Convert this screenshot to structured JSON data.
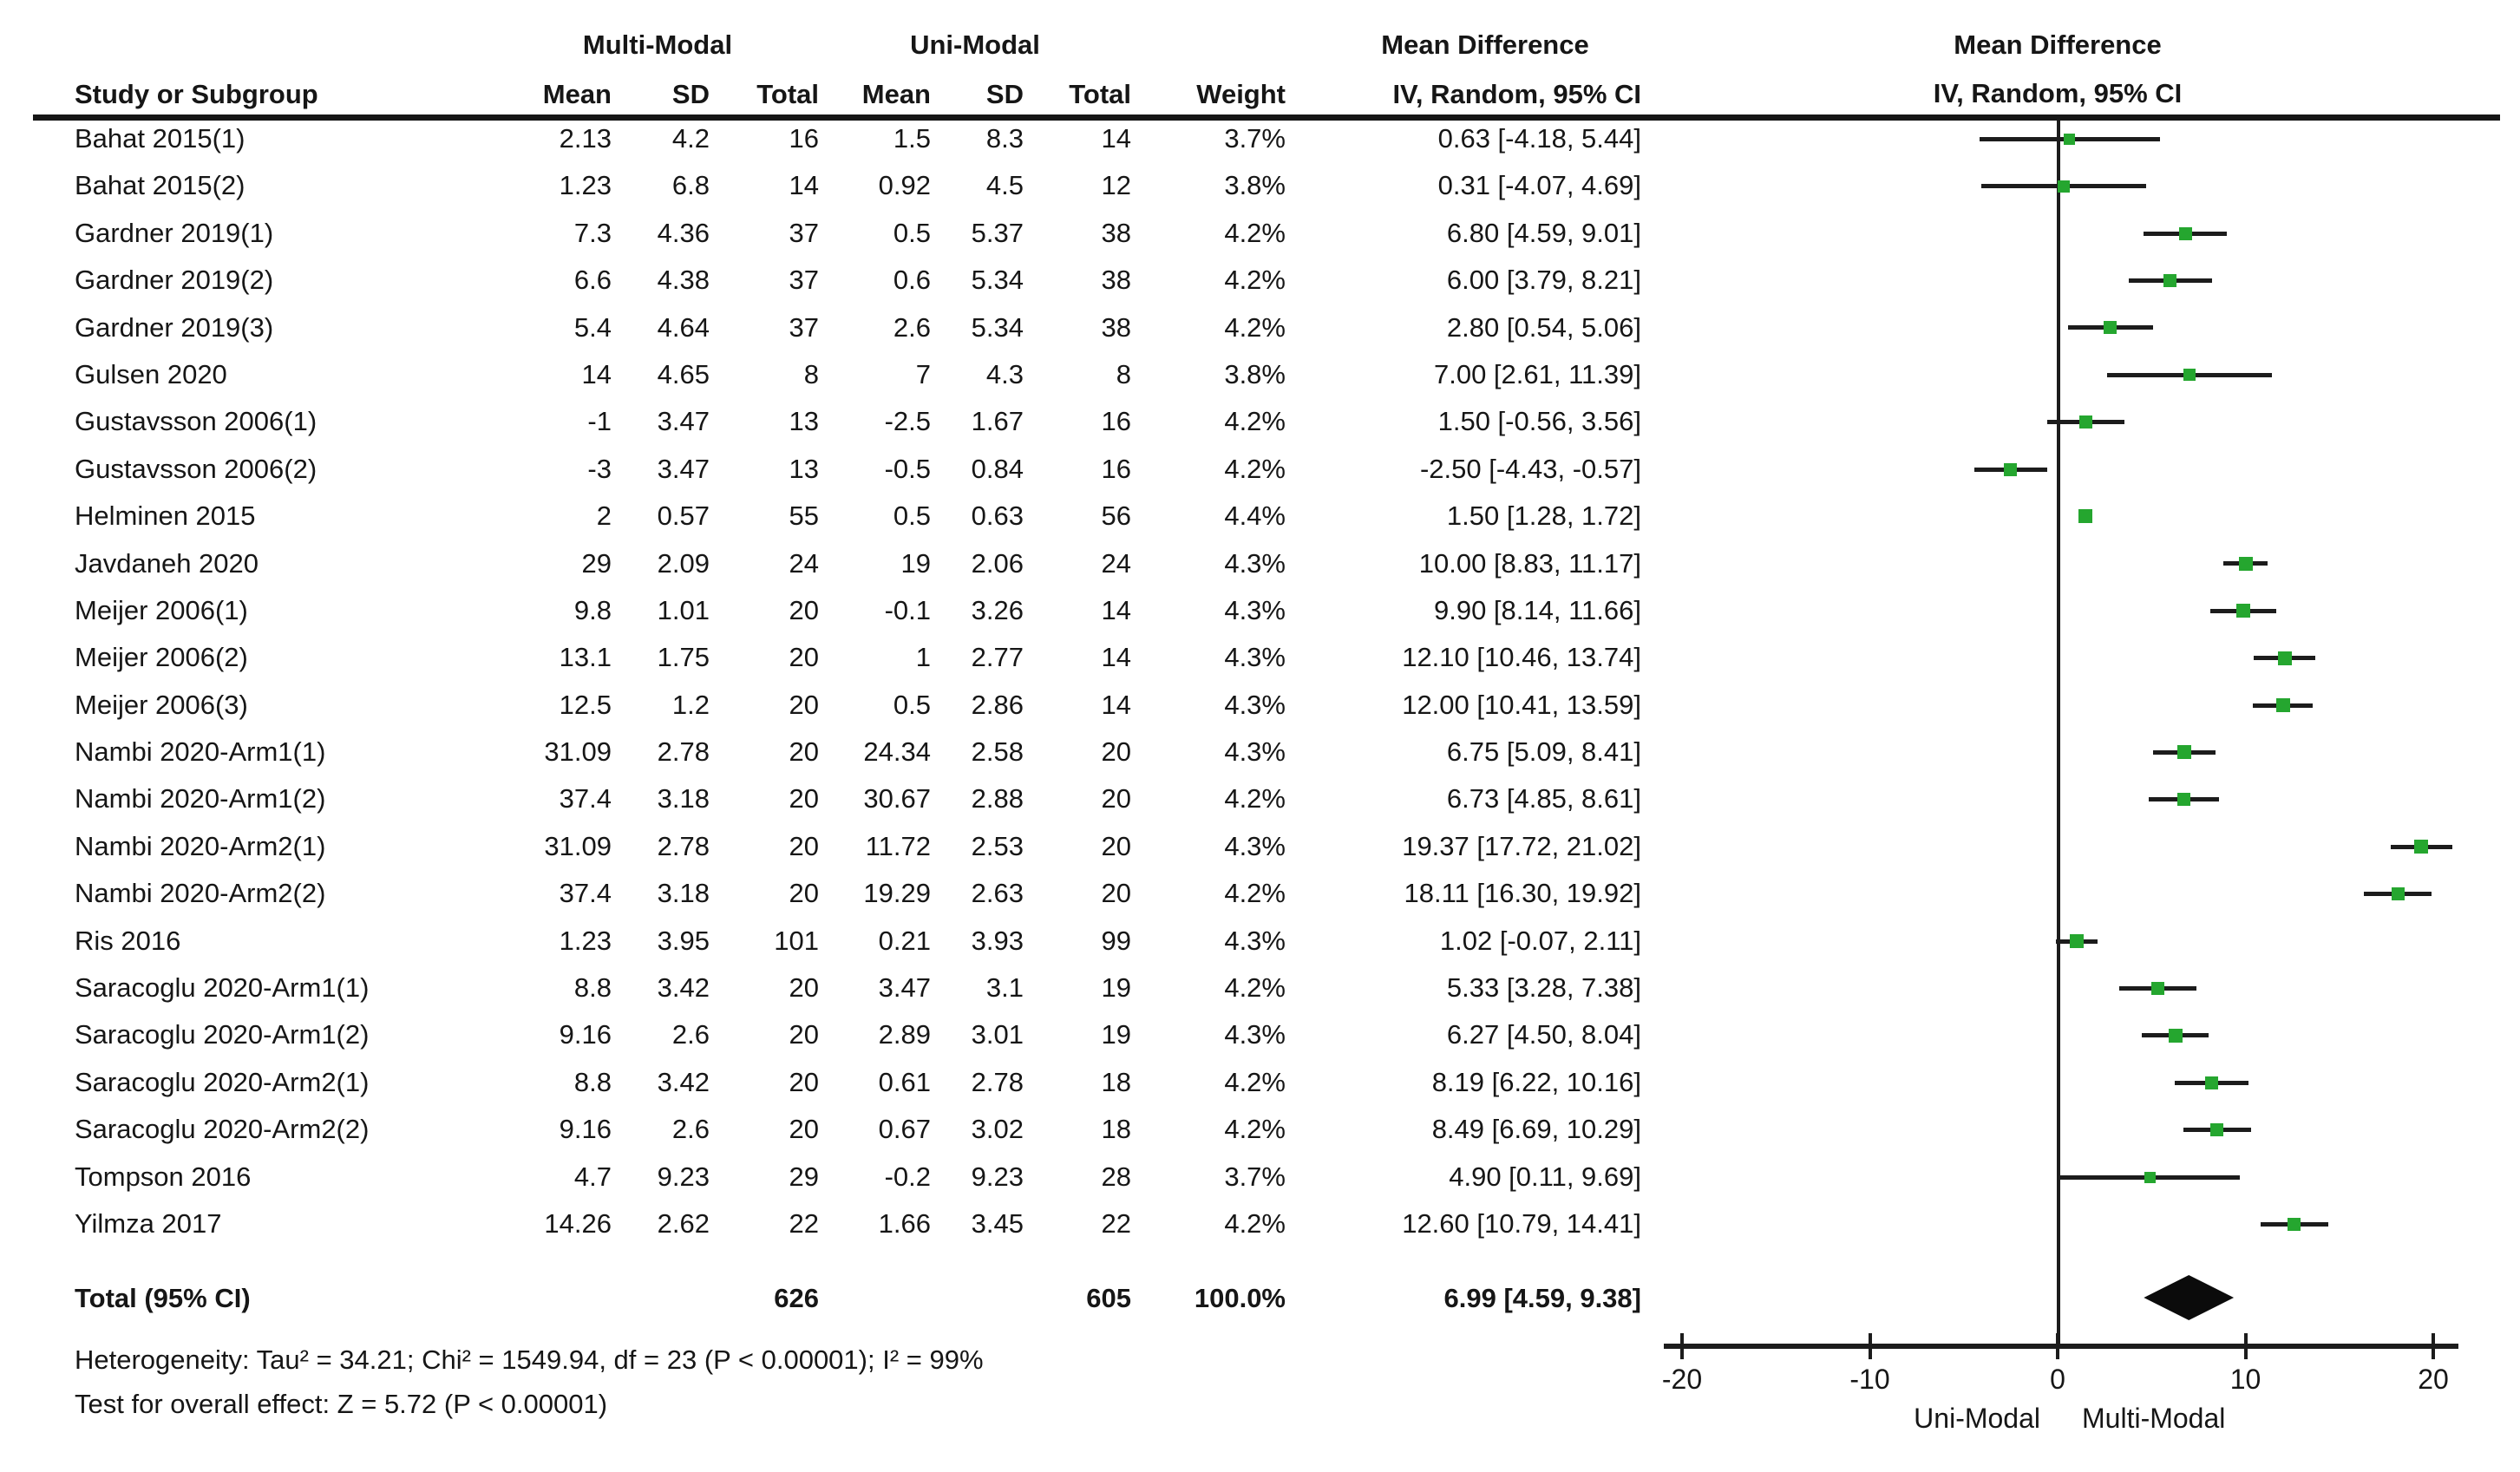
{
  "group_headers": {
    "experimental": "Multi-Modal",
    "control": "Uni-Modal",
    "md_col_line1": "Mean Difference",
    "md_col_line2": "IV, Random, 95% CI",
    "plot_line1": "Mean Difference",
    "plot_line2": "IV, Random, 95% CI"
  },
  "columns": {
    "study": "Study or Subgroup",
    "mean": "Mean",
    "sd": "SD",
    "total": "Total",
    "mean2": "Mean",
    "sd2": "SD",
    "total2": "Total",
    "weight": "Weight",
    "ci": "IV, Random, 95% CI"
  },
  "studies": [
    {
      "name": "Bahat 2015(1)",
      "mm_mean": "2.13",
      "mm_sd": "4.2",
      "mm_total": "16",
      "um_mean": "1.5",
      "um_sd": "8.3",
      "um_total": "14",
      "weight": "3.7%",
      "ci": "0.63 [-4.18, 5.44]"
    },
    {
      "name": "Bahat 2015(2)",
      "mm_mean": "1.23",
      "mm_sd": "6.8",
      "mm_total": "14",
      "um_mean": "0.92",
      "um_sd": "4.5",
      "um_total": "12",
      "weight": "3.8%",
      "ci": "0.31 [-4.07, 4.69]"
    },
    {
      "name": "Gardner 2019(1)",
      "mm_mean": "7.3",
      "mm_sd": "4.36",
      "mm_total": "37",
      "um_mean": "0.5",
      "um_sd": "5.37",
      "um_total": "38",
      "weight": "4.2%",
      "ci": "6.80 [4.59, 9.01]"
    },
    {
      "name": "Gardner 2019(2)",
      "mm_mean": "6.6",
      "mm_sd": "4.38",
      "mm_total": "37",
      "um_mean": "0.6",
      "um_sd": "5.34",
      "um_total": "38",
      "weight": "4.2%",
      "ci": "6.00 [3.79, 8.21]"
    },
    {
      "name": "Gardner 2019(3)",
      "mm_mean": "5.4",
      "mm_sd": "4.64",
      "mm_total": "37",
      "um_mean": "2.6",
      "um_sd": "5.34",
      "um_total": "38",
      "weight": "4.2%",
      "ci": "2.80 [0.54, 5.06]"
    },
    {
      "name": "Gulsen 2020",
      "mm_mean": "14",
      "mm_sd": "4.65",
      "mm_total": "8",
      "um_mean": "7",
      "um_sd": "4.3",
      "um_total": "8",
      "weight": "3.8%",
      "ci": "7.00 [2.61, 11.39]"
    },
    {
      "name": "Gustavsson 2006(1)",
      "mm_mean": "-1",
      "mm_sd": "3.47",
      "mm_total": "13",
      "um_mean": "-2.5",
      "um_sd": "1.67",
      "um_total": "16",
      "weight": "4.2%",
      "ci": "1.50 [-0.56, 3.56]"
    },
    {
      "name": "Gustavsson 2006(2)",
      "mm_mean": "-3",
      "mm_sd": "3.47",
      "mm_total": "13",
      "um_mean": "-0.5",
      "um_sd": "0.84",
      "um_total": "16",
      "weight": "4.2%",
      "ci": "-2.50 [-4.43, -0.57]"
    },
    {
      "name": "Helminen 2015",
      "mm_mean": "2",
      "mm_sd": "0.57",
      "mm_total": "55",
      "um_mean": "0.5",
      "um_sd": "0.63",
      "um_total": "56",
      "weight": "4.4%",
      "ci": "1.50 [1.28, 1.72]"
    },
    {
      "name": "Javdaneh 2020",
      "mm_mean": "29",
      "mm_sd": "2.09",
      "mm_total": "24",
      "um_mean": "19",
      "um_sd": "2.06",
      "um_total": "24",
      "weight": "4.3%",
      "ci": "10.00 [8.83, 11.17]"
    },
    {
      "name": "Meijer 2006(1)",
      "mm_mean": "9.8",
      "mm_sd": "1.01",
      "mm_total": "20",
      "um_mean": "-0.1",
      "um_sd": "3.26",
      "um_total": "14",
      "weight": "4.3%",
      "ci": "9.90 [8.14, 11.66]"
    },
    {
      "name": "Meijer 2006(2)",
      "mm_mean": "13.1",
      "mm_sd": "1.75",
      "mm_total": "20",
      "um_mean": "1",
      "um_sd": "2.77",
      "um_total": "14",
      "weight": "4.3%",
      "ci": "12.10 [10.46, 13.74]"
    },
    {
      "name": "Meijer 2006(3)",
      "mm_mean": "12.5",
      "mm_sd": "1.2",
      "mm_total": "20",
      "um_mean": "0.5",
      "um_sd": "2.86",
      "um_total": "14",
      "weight": "4.3%",
      "ci": "12.00 [10.41, 13.59]"
    },
    {
      "name": "Nambi 2020-Arm1(1)",
      "mm_mean": "31.09",
      "mm_sd": "2.78",
      "mm_total": "20",
      "um_mean": "24.34",
      "um_sd": "2.58",
      "um_total": "20",
      "weight": "4.3%",
      "ci": "6.75 [5.09, 8.41]"
    },
    {
      "name": "Nambi 2020-Arm1(2)",
      "mm_mean": "37.4",
      "mm_sd": "3.18",
      "mm_total": "20",
      "um_mean": "30.67",
      "um_sd": "2.88",
      "um_total": "20",
      "weight": "4.2%",
      "ci": "6.73 [4.85, 8.61]"
    },
    {
      "name": "Nambi 2020-Arm2(1)",
      "mm_mean": "31.09",
      "mm_sd": "2.78",
      "mm_total": "20",
      "um_mean": "11.72",
      "um_sd": "2.53",
      "um_total": "20",
      "weight": "4.3%",
      "ci": "19.37 [17.72, 21.02]"
    },
    {
      "name": "Nambi 2020-Arm2(2)",
      "mm_mean": "37.4",
      "mm_sd": "3.18",
      "mm_total": "20",
      "um_mean": "19.29",
      "um_sd": "2.63",
      "um_total": "20",
      "weight": "4.2%",
      "ci": "18.11 [16.30, 19.92]"
    },
    {
      "name": "Ris 2016",
      "mm_mean": "1.23",
      "mm_sd": "3.95",
      "mm_total": "101",
      "um_mean": "0.21",
      "um_sd": "3.93",
      "um_total": "99",
      "weight": "4.3%",
      "ci": "1.02 [-0.07, 2.11]"
    },
    {
      "name": "Saracoglu 2020-Arm1(1)",
      "mm_mean": "8.8",
      "mm_sd": "3.42",
      "mm_total": "20",
      "um_mean": "3.47",
      "um_sd": "3.1",
      "um_total": "19",
      "weight": "4.2%",
      "ci": "5.33 [3.28, 7.38]"
    },
    {
      "name": "Saracoglu 2020-Arm1(2)",
      "mm_mean": "9.16",
      "mm_sd": "2.6",
      "mm_total": "20",
      "um_mean": "2.89",
      "um_sd": "3.01",
      "um_total": "19",
      "weight": "4.3%",
      "ci": "6.27 [4.50, 8.04]"
    },
    {
      "name": "Saracoglu 2020-Arm2(1)",
      "mm_mean": "8.8",
      "mm_sd": "3.42",
      "mm_total": "20",
      "um_mean": "0.61",
      "um_sd": "2.78",
      "um_total": "18",
      "weight": "4.2%",
      "ci": "8.19 [6.22, 10.16]"
    },
    {
      "name": "Saracoglu 2020-Arm2(2)",
      "mm_mean": "9.16",
      "mm_sd": "2.6",
      "mm_total": "20",
      "um_mean": "0.67",
      "um_sd": "3.02",
      "um_total": "18",
      "weight": "4.2%",
      "ci": "8.49 [6.69, 10.29]"
    },
    {
      "name": "Tompson 2016",
      "mm_mean": "4.7",
      "mm_sd": "9.23",
      "mm_total": "29",
      "um_mean": "-0.2",
      "um_sd": "9.23",
      "um_total": "28",
      "weight": "3.7%",
      "ci": "4.90 [0.11, 9.69]"
    },
    {
      "name": "Yilmza 2017",
      "mm_mean": "14.26",
      "mm_sd": "2.62",
      "mm_total": "22",
      "um_mean": "1.66",
      "um_sd": "3.45",
      "um_total": "22",
      "weight": "4.2%",
      "ci": "12.60 [10.79, 14.41]"
    }
  ],
  "total_row": {
    "label": "Total (95% CI)",
    "mm_total": "626",
    "um_total": "605",
    "weight": "100.0%",
    "ci": "6.99 [4.59, 9.38]"
  },
  "footnotes": {
    "heterogeneity": "Heterogeneity: Tau² = 34.21; Chi² = 1549.94, df = 23 (P < 0.00001); I² = 99%",
    "overall_effect": "Test for overall effect: Z = 5.72 (P < 0.00001)"
  },
  "axis": {
    "min": -20,
    "max": 20,
    "ticks": [
      "-20",
      "-10",
      "0",
      "10",
      "20"
    ],
    "left_label": "Uni-Modal",
    "right_label": "Multi-Modal"
  },
  "colors": {
    "marker_green": "#25a62f",
    "line_black": "#1c1c1c",
    "diamond_black": "#0b0b0b"
  },
  "chart_data": {
    "type": "scatter",
    "subtype": "forest-plot",
    "title": "Mean Difference",
    "xlabel": "IV, Random, 95% CI",
    "categories": [
      "Bahat 2015(1)",
      "Bahat 2015(2)",
      "Gardner 2019(1)",
      "Gardner 2019(2)",
      "Gardner 2019(3)",
      "Gulsen 2020",
      "Gustavsson 2006(1)",
      "Gustavsson 2006(2)",
      "Helminen 2015",
      "Javdaneh 2020",
      "Meijer 2006(1)",
      "Meijer 2006(2)",
      "Meijer 2006(3)",
      "Nambi 2020-Arm1(1)",
      "Nambi 2020-Arm1(2)",
      "Nambi 2020-Arm2(1)",
      "Nambi 2020-Arm2(2)",
      "Ris 2016",
      "Saracoglu 2020-Arm1(1)",
      "Saracoglu 2020-Arm1(2)",
      "Saracoglu 2020-Arm2(1)",
      "Saracoglu 2020-Arm2(2)",
      "Tompson 2016",
      "Yilmza 2017"
    ],
    "series": [
      {
        "name": "Mean Difference IV, Random, 95% CI",
        "estimates": [
          0.63,
          0.31,
          6.8,
          6.0,
          2.8,
          7.0,
          1.5,
          -2.5,
          1.5,
          10.0,
          9.9,
          12.1,
          12.0,
          6.75,
          6.73,
          19.37,
          18.11,
          1.02,
          5.33,
          6.27,
          8.19,
          8.49,
          4.9,
          12.6
        ],
        "ci_low": [
          -4.18,
          -4.07,
          4.59,
          3.79,
          0.54,
          2.61,
          -0.56,
          -4.43,
          1.28,
          8.83,
          8.14,
          10.46,
          10.41,
          5.09,
          4.85,
          17.72,
          16.3,
          -0.07,
          3.28,
          4.5,
          6.22,
          6.69,
          0.11,
          10.79
        ],
        "ci_high": [
          5.44,
          4.69,
          9.01,
          8.21,
          5.06,
          11.39,
          3.56,
          -0.57,
          1.72,
          11.17,
          11.66,
          13.74,
          13.59,
          8.41,
          8.61,
          21.02,
          19.92,
          2.11,
          7.38,
          8.04,
          10.16,
          10.29,
          9.69,
          14.41
        ],
        "weights_pct": [
          3.7,
          3.8,
          4.2,
          4.2,
          4.2,
          3.8,
          4.2,
          4.2,
          4.4,
          4.3,
          4.3,
          4.3,
          4.3,
          4.3,
          4.2,
          4.3,
          4.2,
          4.3,
          4.2,
          4.3,
          4.2,
          4.2,
          3.7,
          4.2
        ]
      }
    ],
    "total": {
      "label": "Total (95% CI)",
      "estimate": 6.99,
      "ci_low": 4.59,
      "ci_high": 9.38,
      "weight_pct": 100.0
    },
    "xlim": [
      -20,
      20
    ],
    "x_ticks": [
      -20,
      -10,
      0,
      10,
      20
    ],
    "x_left_group_label": "Uni-Modal",
    "x_right_group_label": "Multi-Modal",
    "grid": false,
    "legend": false
  }
}
